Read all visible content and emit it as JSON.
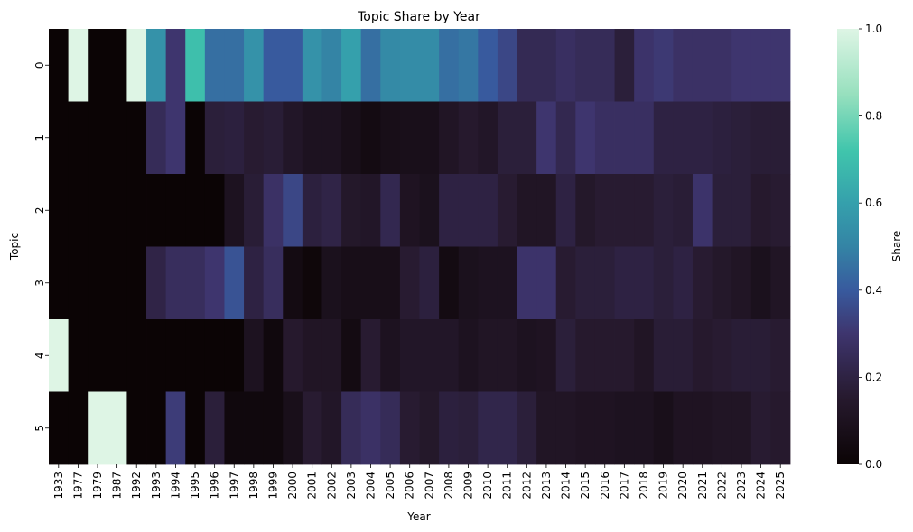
{
  "chart_data": {
    "type": "heatmap",
    "title": "Topic Share by Year",
    "xlabel": "Year",
    "ylabel": "Topic",
    "colorbar_label": "Share",
    "colormap": "mako",
    "vmin": 0.0,
    "vmax": 1.0,
    "colorbar_ticks": [
      "0.0",
      "0.2",
      "0.4",
      "0.6",
      "0.8",
      "1.0"
    ],
    "x": [
      "1933",
      "1977",
      "1979",
      "1987",
      "1992",
      "1993",
      "1994",
      "1995",
      "1996",
      "1997",
      "1998",
      "1999",
      "2000",
      "2001",
      "2002",
      "2003",
      "2004",
      "2005",
      "2006",
      "2007",
      "2008",
      "2009",
      "2010",
      "2011",
      "2012",
      "2013",
      "2014",
      "2015",
      "2016",
      "2017",
      "2018",
      "2019",
      "2020",
      "2021",
      "2022",
      "2023",
      "2024",
      "2025"
    ],
    "y": [
      "0",
      "1",
      "2",
      "3",
      "4",
      "5"
    ],
    "values": [
      [
        0.0,
        1.0,
        0.0,
        0.0,
        1.0,
        0.55,
        0.3,
        0.7,
        0.45,
        0.45,
        0.55,
        0.4,
        0.4,
        0.55,
        0.5,
        0.6,
        0.45,
        0.52,
        0.53,
        0.53,
        0.45,
        0.47,
        0.4,
        0.35,
        0.24,
        0.24,
        0.27,
        0.25,
        0.25,
        0.18,
        0.29,
        0.31,
        0.28,
        0.28,
        0.28,
        0.3,
        0.3,
        0.3
      ],
      [
        0.0,
        0.0,
        0.0,
        0.0,
        0.0,
        0.25,
        0.3,
        0.0,
        0.18,
        0.19,
        0.16,
        0.17,
        0.13,
        0.1,
        0.1,
        0.07,
        0.05,
        0.07,
        0.08,
        0.08,
        0.12,
        0.15,
        0.13,
        0.18,
        0.18,
        0.3,
        0.23,
        0.3,
        0.27,
        0.27,
        0.27,
        0.2,
        0.2,
        0.2,
        0.19,
        0.18,
        0.17,
        0.17
      ],
      [
        0.0,
        0.0,
        0.0,
        0.0,
        0.0,
        0.0,
        0.0,
        0.0,
        0.0,
        0.1,
        0.17,
        0.28,
        0.35,
        0.19,
        0.21,
        0.14,
        0.13,
        0.23,
        0.11,
        0.09,
        0.2,
        0.2,
        0.2,
        0.16,
        0.12,
        0.12,
        0.2,
        0.14,
        0.16,
        0.16,
        0.16,
        0.18,
        0.17,
        0.29,
        0.18,
        0.18,
        0.15,
        0.16
      ],
      [
        0.0,
        0.0,
        0.0,
        0.0,
        0.0,
        0.21,
        0.26,
        0.26,
        0.3,
        0.38,
        0.2,
        0.26,
        0.05,
        0.02,
        0.09,
        0.07,
        0.07,
        0.07,
        0.16,
        0.19,
        0.05,
        0.09,
        0.1,
        0.1,
        0.29,
        0.29,
        0.16,
        0.18,
        0.18,
        0.2,
        0.2,
        0.18,
        0.2,
        0.16,
        0.14,
        0.12,
        0.09,
        0.12
      ],
      [
        1.0,
        0.0,
        0.0,
        0.0,
        0.0,
        0.0,
        0.0,
        0.0,
        0.0,
        0.0,
        0.1,
        0.03,
        0.15,
        0.12,
        0.12,
        0.05,
        0.16,
        0.1,
        0.13,
        0.13,
        0.13,
        0.1,
        0.12,
        0.12,
        0.1,
        0.11,
        0.18,
        0.15,
        0.15,
        0.15,
        0.12,
        0.17,
        0.17,
        0.15,
        0.16,
        0.17,
        0.17,
        0.16
      ],
      [
        0.0,
        0.0,
        1.0,
        1.0,
        0.0,
        0.0,
        0.32,
        0.0,
        0.18,
        0.03,
        0.03,
        0.03,
        0.08,
        0.16,
        0.13,
        0.25,
        0.28,
        0.25,
        0.16,
        0.14,
        0.19,
        0.18,
        0.22,
        0.22,
        0.18,
        0.12,
        0.12,
        0.11,
        0.11,
        0.1,
        0.1,
        0.08,
        0.11,
        0.11,
        0.12,
        0.12,
        0.16,
        0.15
      ]
    ]
  }
}
